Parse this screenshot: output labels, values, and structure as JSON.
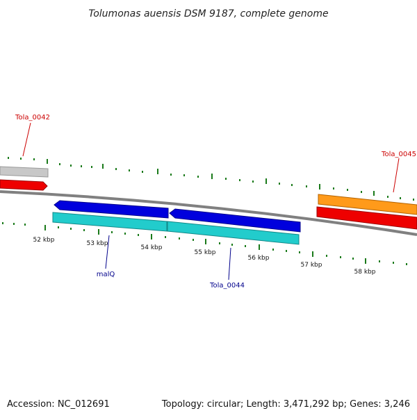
{
  "map": {
    "title": "Tolumonas auensis DSM 9187, complete genome",
    "accession": "Accession: NC_012691",
    "summary": "Topology: circular; Length: 3,471,292 bp; Genes: 3,246"
  },
  "ticks": [
    {
      "label": "52 kbp"
    },
    {
      "label": "53 kbp"
    },
    {
      "label": "54 kbp"
    },
    {
      "label": "55 kbp"
    },
    {
      "label": "56 kbp"
    },
    {
      "label": "57 kbp"
    },
    {
      "label": "58 kbp"
    }
  ],
  "genes": [
    {
      "name": "Tola_0042",
      "color": "#cc0000"
    },
    {
      "name": "malQ",
      "color": "#00008b"
    },
    {
      "name": "Tola_0044",
      "color": "#00008b"
    },
    {
      "name": "Tola_0045",
      "color": "#cc0000"
    }
  ],
  "colors": {
    "backbone": "#808080",
    "tick": "#1a7a1a",
    "cds_forward": "#0000dd",
    "cds_reverse_gray": "#c8c8c8",
    "gene_red": "#ee0000",
    "gene_orange": "#ff9a1a",
    "gene_cyan": "#22cccc"
  }
}
